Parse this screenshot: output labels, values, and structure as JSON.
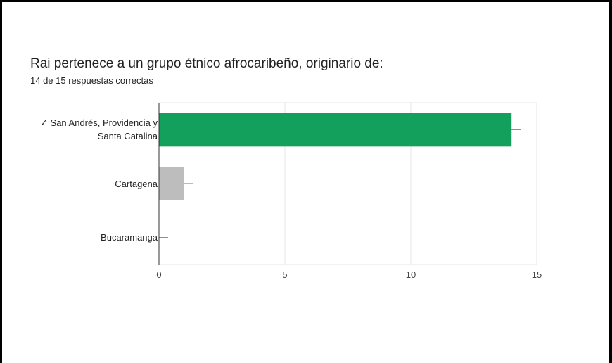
{
  "question": {
    "title": "Rai pertenece a un grupo étnico afrocaribeño, originario de:",
    "summary": "14 de 15 respuestas correctas"
  },
  "colors": {
    "correct_bar": "#12a05c",
    "other_bar": "#bdbdbd",
    "grid": "#e6e6e6",
    "axis": "#333333"
  },
  "chart_data": {
    "type": "bar",
    "orientation": "horizontal",
    "categories": [
      {
        "label_lines": [
          "✓ San Andrés, Providencia y",
          "Santa Catalina"
        ],
        "correct": true
      },
      {
        "label_lines": [
          "Cartagena"
        ],
        "correct": false
      },
      {
        "label_lines": [
          "Bucaramanga"
        ],
        "correct": false
      }
    ],
    "values": [
      14,
      1,
      0
    ],
    "xlim": [
      0,
      15
    ],
    "xticks": [
      "0",
      "5",
      "10",
      "15"
    ],
    "xtick_values": [
      0,
      5,
      10,
      15
    ],
    "grid": true,
    "title": "",
    "xlabel": "",
    "ylabel": ""
  }
}
